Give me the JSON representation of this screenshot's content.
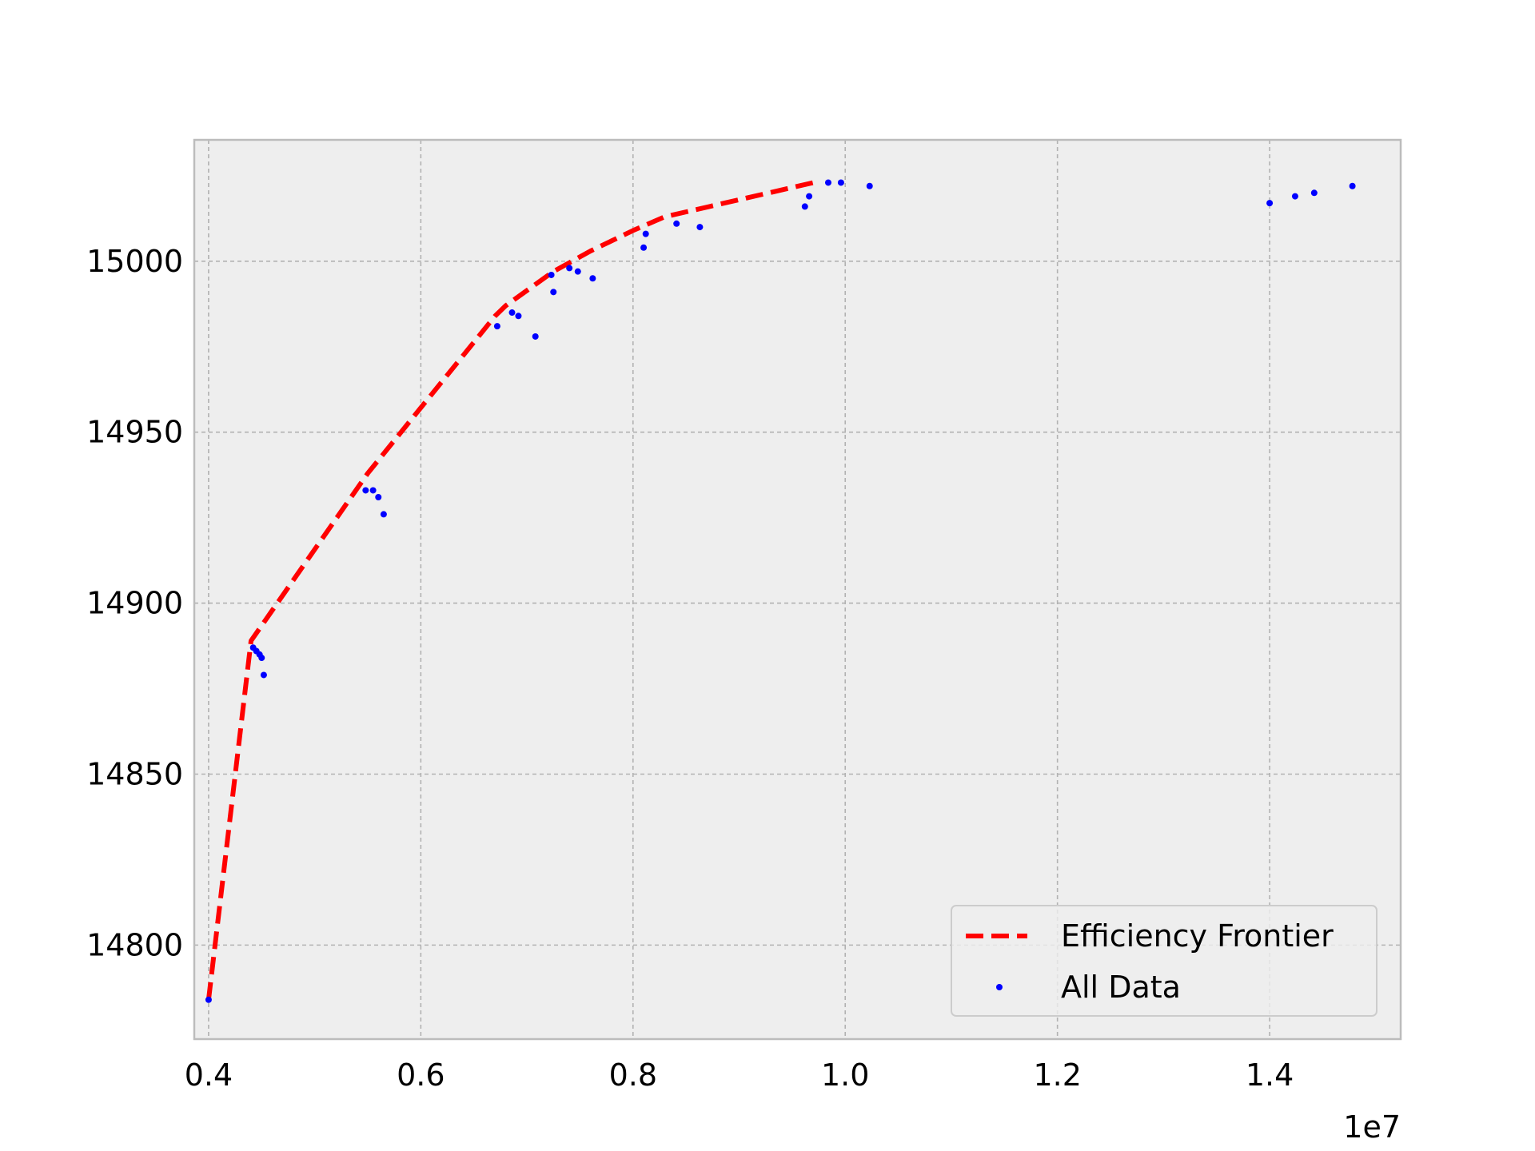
{
  "chart_data": {
    "type": "scatter",
    "title": "",
    "xlabel": "",
    "ylabel": "",
    "x_offset_label": "1e7",
    "xlim": [
      0.3865,
      1.5235
    ],
    "ylim": [
      14772.5,
      15035.5
    ],
    "x_ticks": [
      0.4,
      0.6,
      0.8,
      1.0,
      1.2,
      1.4
    ],
    "x_tick_labels": [
      "0.4",
      "0.6",
      "0.8",
      "1.0",
      "1.2",
      "1.4"
    ],
    "y_ticks": [
      14800,
      14850,
      14900,
      14950,
      15000
    ],
    "y_tick_labels": [
      "14800",
      "14850",
      "14900",
      "14950",
      "15000"
    ],
    "grid": true,
    "legend_position": "lower-right",
    "background_color": "#eeeeee",
    "series": [
      {
        "name": "Efficiency Frontier",
        "kind": "line",
        "style": "dashed",
        "color": "#ff0000",
        "x": [
          0.4,
          0.44,
          0.55,
          0.67,
          0.68,
          0.725,
          0.76,
          0.8,
          0.83,
          0.97
        ],
        "y": [
          14784,
          14889,
          14938,
          14984,
          14987,
          14997,
          15003,
          15009,
          15013,
          15023
        ]
      },
      {
        "name": "All Data",
        "kind": "scatter",
        "color": "#0000ff",
        "x": [
          0.4,
          0.442,
          0.445,
          0.448,
          0.45,
          0.452,
          0.548,
          0.555,
          0.56,
          0.565,
          0.672,
          0.686,
          0.692,
          0.708,
          0.723,
          0.725,
          0.74,
          0.748,
          0.762,
          0.81,
          0.812,
          0.841,
          0.863,
          0.962,
          0.966,
          0.984,
          0.996,
          1.023,
          1.4,
          1.424,
          1.442,
          1.478
        ],
        "y": [
          14784,
          14887,
          14886,
          14885,
          14884,
          14879,
          14933,
          14933,
          14931,
          14926,
          14981,
          14985,
          14984,
          14978,
          14996,
          14991,
          14998,
          14997,
          14995,
          15004,
          15008,
          15011,
          15010,
          15016,
          15019,
          15023,
          15023,
          15022,
          15017,
          15019,
          15020,
          15022
        ]
      }
    ]
  }
}
